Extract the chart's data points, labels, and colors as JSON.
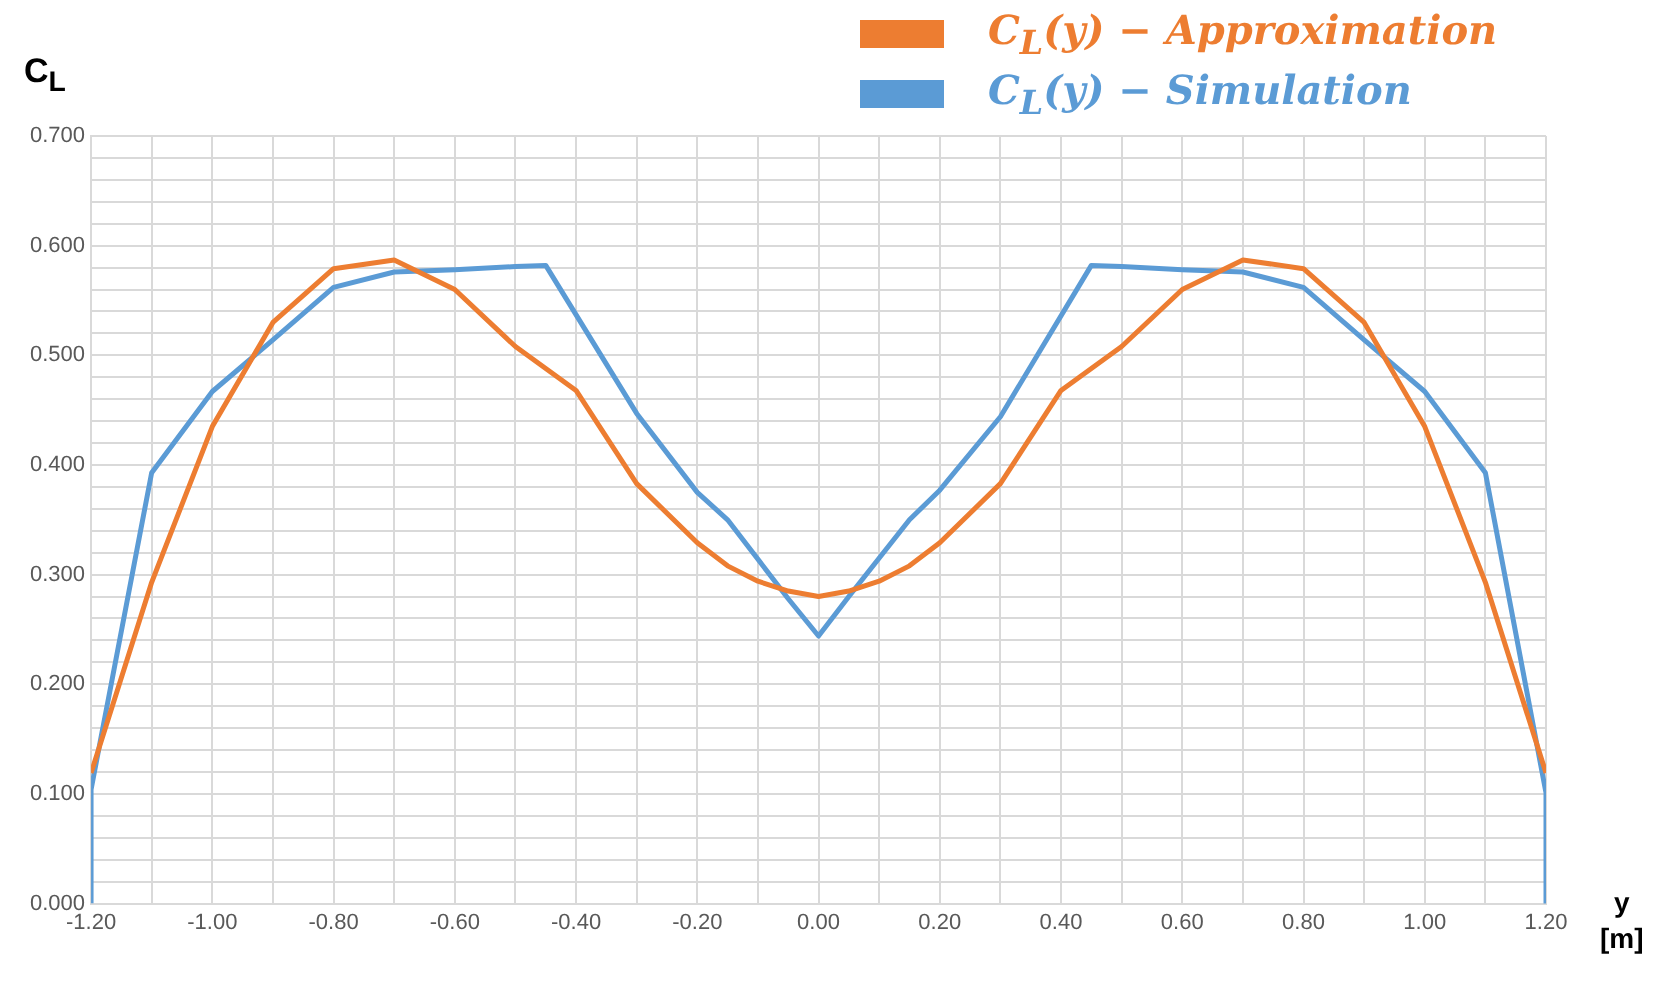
{
  "chart_data": {
    "type": "line",
    "ylabel": "C$_{L}$",
    "xlabel": "y\n[m]",
    "legend": "top right",
    "grid": true,
    "marker": "none",
    "line_style": "solid",
    "xlim": [
      -1.2,
      1.2
    ],
    "ylim": [
      0,
      0.7
    ],
    "xticks": [
      {
        "value": -1.2,
        "label": "-1.20"
      },
      {
        "value": -1.1,
        "label": null
      },
      {
        "value": -1.0,
        "label": "-1.00"
      },
      {
        "value": -0.9,
        "label": null
      },
      {
        "value": -0.8,
        "label": "-0.80"
      },
      {
        "value": -0.7,
        "label": null
      },
      {
        "value": -0.6,
        "label": "-0.60"
      },
      {
        "value": -0.5,
        "label": null
      },
      {
        "value": -0.4,
        "label": "-0.40"
      },
      {
        "value": -0.3,
        "label": null
      },
      {
        "value": -0.2,
        "label": "-0.20"
      },
      {
        "value": -0.1,
        "label": null
      },
      {
        "value": 0,
        "label": "0.00"
      },
      {
        "value": 0.1,
        "label": null
      },
      {
        "value": 0.2,
        "label": "0.20"
      },
      {
        "value": 0.3,
        "label": null
      },
      {
        "value": 0.4,
        "label": "0.40"
      },
      {
        "value": 0.5,
        "label": null
      },
      {
        "value": 0.6,
        "label": "0.60"
      },
      {
        "value": 0.7,
        "label": null
      },
      {
        "value": 0.8,
        "label": "0.80"
      },
      {
        "value": 0.9,
        "label": null
      },
      {
        "value": 1.0,
        "label": "1.00"
      },
      {
        "value": 1.1,
        "label": null
      },
      {
        "value": 1.2,
        "label": "1.20"
      }
    ],
    "yticks": [
      {
        "value": 0,
        "label": "0.000"
      },
      {
        "value": 0.02,
        "label": null
      },
      {
        "value": 0.04,
        "label": null
      },
      {
        "value": 0.06,
        "label": null
      },
      {
        "value": 0.08,
        "label": null
      },
      {
        "value": 0.1,
        "label": "0.100"
      },
      {
        "value": 0.12,
        "label": null
      },
      {
        "value": 0.14,
        "label": null
      },
      {
        "value": 0.16,
        "label": null
      },
      {
        "value": 0.18,
        "label": null
      },
      {
        "value": 0.2,
        "label": "0.200"
      },
      {
        "value": 0.22,
        "label": null
      },
      {
        "value": 0.24,
        "label": null
      },
      {
        "value": 0.26,
        "label": null
      },
      {
        "value": 0.28,
        "label": null
      },
      {
        "value": 0.3,
        "label": "0.300"
      },
      {
        "value": 0.32,
        "label": null
      },
      {
        "value": 0.34,
        "label": null
      },
      {
        "value": 0.36,
        "label": null
      },
      {
        "value": 0.38,
        "label": null
      },
      {
        "value": 0.4,
        "label": "0.400"
      },
      {
        "value": 0.42,
        "label": null
      },
      {
        "value": 0.44,
        "label": null
      },
      {
        "value": 0.46,
        "label": null
      },
      {
        "value": 0.48,
        "label": null
      },
      {
        "value": 0.5,
        "label": "0.500"
      },
      {
        "value": 0.52,
        "label": null
      },
      {
        "value": 0.54,
        "label": null
      },
      {
        "value": 0.56,
        "label": null
      },
      {
        "value": 0.58,
        "label": null
      },
      {
        "value": 0.6,
        "label": "0.600"
      },
      {
        "value": 0.62,
        "label": null
      },
      {
        "value": 0.64,
        "label": null
      },
      {
        "value": 0.66,
        "label": null
      },
      {
        "value": 0.68,
        "label": null
      },
      {
        "value": 0.7,
        "label": "0.700"
      }
    ],
    "series": [
      {
        "name": "C$_{L}$(y) − Approximation",
        "color": "#ed7d31",
        "x": [
          -1.2,
          -1.1,
          -1.0,
          -0.9,
          -0.8,
          -0.7,
          -0.6,
          -0.5,
          -0.4,
          -0.3,
          -0.2,
          -0.15,
          -0.1,
          -0.05,
          0,
          0.05,
          0.1,
          0.15,
          0.2,
          0.3,
          0.4,
          0.5,
          0.6,
          0.7,
          0.8,
          0.9,
          1.0,
          1.1,
          1.2
        ],
        "values": [
          0.119,
          0.293,
          0.435,
          0.53,
          0.579,
          0.587,
          0.56,
          0.508,
          0.468,
          0.383,
          0.329,
          0.308,
          0.294,
          0.285,
          0.28,
          0.285,
          0.294,
          0.308,
          0.329,
          0.383,
          0.468,
          0.508,
          0.56,
          0.587,
          0.579,
          0.53,
          0.435,
          0.293,
          0.119
        ]
      },
      {
        "name": "C$_{L}$(y) − Simulation",
        "color": "#5b9bd5",
        "x": [
          -1.2,
          -1.2,
          -1.1,
          -1.0,
          -0.9,
          -0.8,
          -0.7,
          -0.6,
          -0.5,
          -0.45,
          -0.3,
          -0.2,
          -0.15,
          -0.05,
          0,
          0.05,
          0.15,
          0.2,
          0.3,
          0.45,
          0.5,
          0.6,
          0.7,
          0.8,
          0.9,
          1.0,
          1.1,
          1.2,
          1.2
        ],
        "values": [
          0,
          0.104,
          0.393,
          0.467,
          0.514,
          0.562,
          0.576,
          0.578,
          0.581,
          0.582,
          0.447,
          0.375,
          0.35,
          0.278,
          0.244,
          0.28,
          0.35,
          0.377,
          0.444,
          0.582,
          0.581,
          0.578,
          0.576,
          0.562,
          0.514,
          0.467,
          0.393,
          0.101,
          0
        ]
      }
    ]
  }
}
